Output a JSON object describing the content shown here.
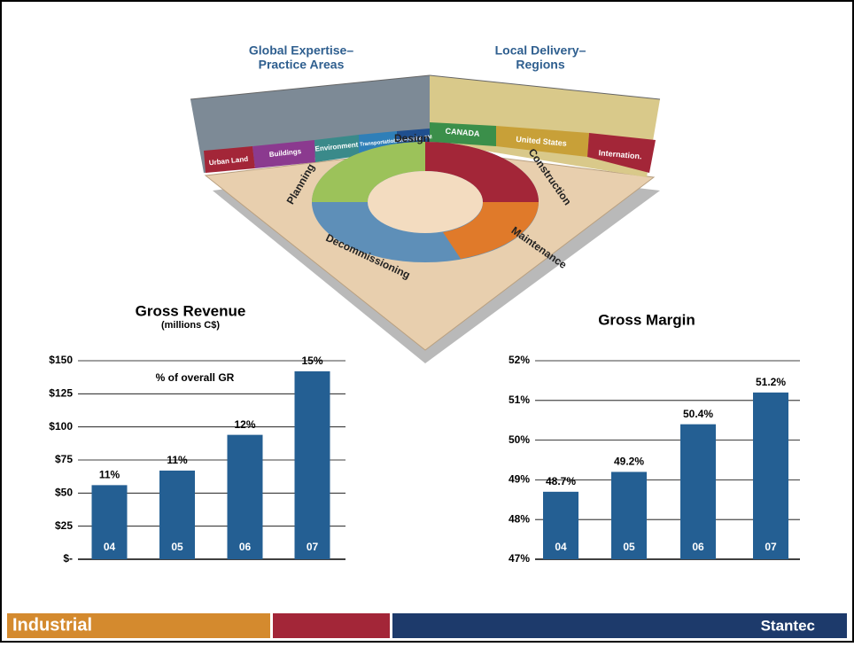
{
  "chart_data": [
    {
      "type": "bar",
      "title": "Gross Revenue",
      "subtitle": "(millions C$)",
      "annotation": "% of overall GR",
      "categories": [
        "04",
        "05",
        "06",
        "07"
      ],
      "values": [
        56,
        67,
        94,
        142
      ],
      "bar_labels": [
        "11%",
        "11%",
        "12%",
        "15%"
      ],
      "color": "#245f93",
      "ylim": [
        0,
        150
      ],
      "yticks": [
        {
          "value": 0,
          "label": "$-"
        },
        {
          "value": 25,
          "label": "$25"
        },
        {
          "value": 50,
          "label": "$50"
        },
        {
          "value": 75,
          "label": "$75"
        },
        {
          "value": 100,
          "label": "$100"
        },
        {
          "value": 125,
          "label": "$125"
        },
        {
          "value": 150,
          "label": "$150"
        }
      ],
      "grid": true
    },
    {
      "type": "bar",
      "title": "Gross Margin",
      "categories": [
        "04",
        "05",
        "06",
        "07"
      ],
      "values": [
        48.7,
        49.2,
        50.4,
        51.2
      ],
      "value_labels": [
        "48.7%",
        "49.2%",
        "50.4%",
        "51.2%"
      ],
      "color": "#245f93",
      "ylim": [
        47,
        52
      ],
      "yticks": [
        {
          "value": 47,
          "label": "47%"
        },
        {
          "value": 48,
          "label": "48%"
        },
        {
          "value": 49,
          "label": "49%"
        },
        {
          "value": 50,
          "label": "50%"
        },
        {
          "value": 51,
          "label": "51%"
        },
        {
          "value": 52,
          "label": "52%"
        }
      ],
      "grid": true
    }
  ],
  "illustration": {
    "left_heading": [
      "Global Expertise–",
      "Practice Areas"
    ],
    "right_heading": [
      "Local Delivery–",
      "Regions"
    ],
    "practice_areas": [
      "Urban Land",
      "Buildings",
      "Environment",
      "Transportation",
      "Industrial & PM"
    ],
    "regions": [
      "CANADA",
      "United States",
      "Internation."
    ],
    "phases": [
      "Planning",
      "Design",
      "Construction",
      "Maintenance",
      "Decommissioning"
    ]
  },
  "footer": {
    "section": "Industrial",
    "brand": "Stantec"
  }
}
